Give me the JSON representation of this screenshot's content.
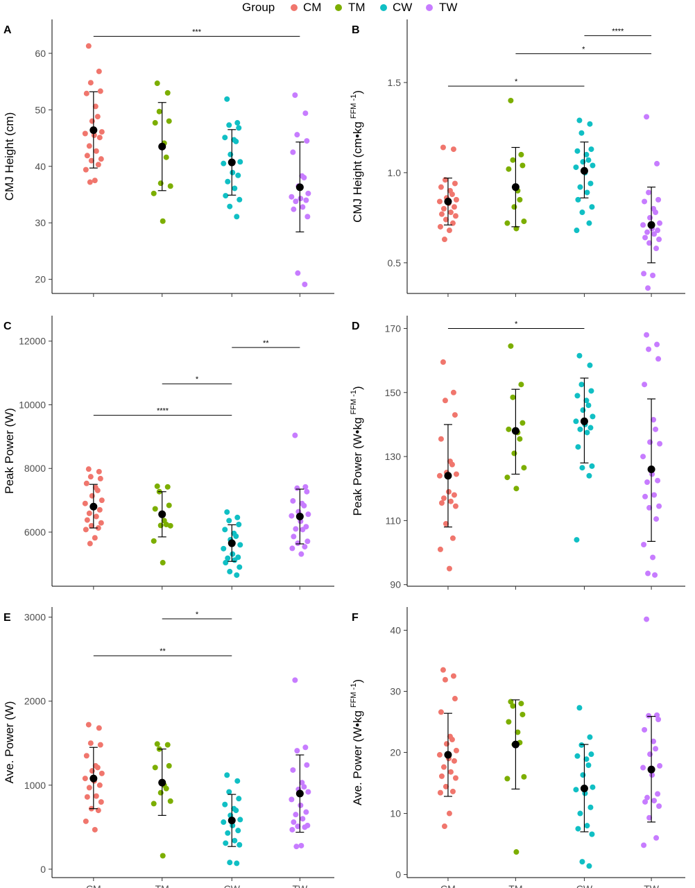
{
  "legend": {
    "title": "Group",
    "items": [
      {
        "label": "CM",
        "color": "#f0766d"
      },
      {
        "label": "TM",
        "color": "#7cae00"
      },
      {
        "label": "CW",
        "color": "#10bfc4"
      },
      {
        "label": "TW",
        "color": "#c77cff"
      }
    ]
  },
  "chart_data": [
    {
      "panel": "A",
      "type": "scatter",
      "ylabel": "CMJ Height (cm)",
      "categories": [
        "CM",
        "TM",
        "CW",
        "TW"
      ],
      "yticks": [
        20,
        30,
        40,
        50,
        60
      ],
      "ylim": [
        17.5,
        66
      ],
      "summary": [
        {
          "group": "CM",
          "mean": 46.4,
          "lower": 39.7,
          "upper": 53.2
        },
        {
          "group": "TM",
          "mean": 43.5,
          "lower": 35.7,
          "upper": 51.3
        },
        {
          "group": "CW",
          "mean": 40.7,
          "lower": 34.9,
          "upper": 46.5
        },
        {
          "group": "TW",
          "mean": 36.3,
          "lower": 28.4,
          "upper": 44.3
        }
      ],
      "points": [
        {
          "group": "CM",
          "values": [
            61.3,
            56.8,
            54.8,
            53.3,
            52.9,
            50.6,
            48.8,
            48.0,
            46.1,
            45.8,
            45.5,
            45.1,
            43.6,
            42.7,
            41.9,
            41.3,
            41.0,
            40.3,
            39.4,
            37.5,
            37.2
          ]
        },
        {
          "group": "TM",
          "values": [
            54.7,
            53.0,
            49.7,
            48.0,
            47.7,
            44.1,
            41.6,
            37.0,
            36.5,
            35.2,
            30.3
          ]
        },
        {
          "group": "CW",
          "values": [
            51.9,
            47.7,
            47.3,
            46.8,
            45.1,
            44.7,
            44.4,
            42.1,
            40.8,
            40.5,
            38.9,
            38.4,
            37.3,
            36.1,
            34.8,
            34.1,
            32.9,
            31.1
          ]
        },
        {
          "group": "TW",
          "values": [
            52.6,
            49.4,
            45.6,
            44.5,
            42.5,
            38.3,
            38.0,
            36.5,
            35.2,
            34.6,
            34.3,
            34.0,
            33.8,
            32.8,
            32.4,
            31.1,
            21.1,
            19.1
          ]
        }
      ],
      "significance": [
        {
          "from": "CM",
          "to": "TW",
          "y": 63.0,
          "label": "***"
        }
      ]
    },
    {
      "panel": "B",
      "type": "scatter",
      "ylabel": "CMJ Height (cm•kg",
      "ylabel_superscript": "FFM",
      "ylabel_exponent": "-1",
      "ylabel_close": ")",
      "categories": [
        "CM",
        "TM",
        "CW",
        "TW"
      ],
      "yticks": [
        0.5,
        1.0,
        1.5
      ],
      "ylim": [
        0.33,
        1.85
      ],
      "yticklabels": [
        "0.5",
        "1.0",
        "1.5"
      ],
      "summary": [
        {
          "group": "CM",
          "mean": 0.84,
          "lower": 0.71,
          "upper": 0.97
        },
        {
          "group": "TM",
          "mean": 0.92,
          "lower": 0.7,
          "upper": 1.14
        },
        {
          "group": "CW",
          "mean": 1.01,
          "lower": 0.86,
          "upper": 1.17
        },
        {
          "group": "TW",
          "mean": 0.71,
          "lower": 0.5,
          "upper": 0.92
        }
      ],
      "points": [
        {
          "group": "CM",
          "values": [
            1.14,
            1.13,
            0.96,
            0.94,
            0.92,
            0.9,
            0.88,
            0.86,
            0.85,
            0.84,
            0.83,
            0.81,
            0.8,
            0.78,
            0.77,
            0.76,
            0.74,
            0.72,
            0.7,
            0.68,
            0.63
          ]
        },
        {
          "group": "TM",
          "values": [
            1.4,
            1.1,
            1.07,
            1.04,
            1.02,
            0.9,
            0.85,
            0.81,
            0.73,
            0.72,
            0.69
          ]
        },
        {
          "group": "CW",
          "values": [
            1.29,
            1.27,
            1.22,
            1.13,
            1.12,
            1.1,
            1.07,
            1.06,
            1.04,
            1.03,
            1.0,
            0.94,
            0.92,
            0.89,
            0.85,
            0.81,
            0.78,
            0.72,
            0.68
          ]
        },
        {
          "group": "TW",
          "values": [
            1.31,
            1.05,
            0.89,
            0.85,
            0.84,
            0.8,
            0.78,
            0.75,
            0.72,
            0.71,
            0.69,
            0.68,
            0.67,
            0.66,
            0.64,
            0.63,
            0.61,
            0.58,
            0.44,
            0.43,
            0.36
          ]
        }
      ],
      "significance": [
        {
          "from": "CW",
          "to": "TW",
          "y": 1.76,
          "label": "****"
        },
        {
          "from": "TM",
          "to": "TW",
          "y": 1.66,
          "label": "*"
        },
        {
          "from": "CM",
          "to": "CW",
          "y": 1.48,
          "label": "*"
        }
      ]
    },
    {
      "panel": "C",
      "type": "scatter",
      "ylabel": "Peak Power (W)",
      "categories": [
        "CM",
        "TM",
        "CW",
        "TW"
      ],
      "yticks": [
        6000,
        8000,
        10000,
        12000
      ],
      "ylim": [
        4300,
        12800
      ],
      "summary": [
        {
          "group": "CM",
          "mean": 6800,
          "lower": 6130,
          "upper": 7500
        },
        {
          "group": "TM",
          "mean": 6560,
          "lower": 5850,
          "upper": 7270
        },
        {
          "group": "CW",
          "mean": 5650,
          "lower": 5080,
          "upper": 6230
        },
        {
          "group": "TW",
          "mean": 6490,
          "lower": 5630,
          "upper": 7350
        }
      ],
      "points": [
        {
          "group": "CM",
          "values": [
            7980,
            7900,
            7740,
            7680,
            7530,
            7400,
            7310,
            7140,
            7000,
            6900,
            6810,
            6700,
            6590,
            6490,
            6380,
            6290,
            6200,
            6130,
            6080,
            5820,
            5640
          ]
        },
        {
          "group": "TM",
          "values": [
            7440,
            7420,
            7270,
            6840,
            6730,
            6360,
            6240,
            6210,
            6200,
            5720,
            5040
          ]
        },
        {
          "group": "CW",
          "values": [
            6630,
            6460,
            6360,
            6240,
            6080,
            5960,
            5870,
            5760,
            5600,
            5480,
            5310,
            5210,
            5180,
            5120,
            5040,
            4900,
            4760,
            4650
          ]
        },
        {
          "group": "TW",
          "values": [
            9040,
            7420,
            7380,
            7270,
            6980,
            6900,
            6830,
            6640,
            6560,
            6510,
            6340,
            6170,
            6100,
            6080,
            5860,
            5710,
            5650,
            5540,
            5490,
            5310
          ]
        }
      ],
      "significance": [
        {
          "from": "CW",
          "to": "TW",
          "y": 11800,
          "label": "**"
        },
        {
          "from": "TM",
          "to": "CW",
          "y": 10660,
          "label": "*"
        },
        {
          "from": "CM",
          "to": "CW",
          "y": 9670,
          "label": "****"
        }
      ]
    },
    {
      "panel": "D",
      "type": "scatter",
      "ylabel": "Peak Power (W•kg",
      "ylabel_superscript": "FFM",
      "ylabel_exponent": "-1",
      "ylabel_close": ")",
      "categories": [
        "CM",
        "TM",
        "CW",
        "TW"
      ],
      "yticks": [
        90,
        110,
        130,
        150,
        170
      ],
      "ylim": [
        89.5,
        174
      ],
      "summary": [
        {
          "group": "CM",
          "mean": 124,
          "lower": 108,
          "upper": 140
        },
        {
          "group": "TM",
          "mean": 138,
          "lower": 124.5,
          "upper": 151
        },
        {
          "group": "CW",
          "mean": 141,
          "lower": 128,
          "upper": 154.5
        },
        {
          "group": "TW",
          "mean": 126,
          "lower": 103.5,
          "upper": 148
        }
      ],
      "points": [
        {
          "group": "CM",
          "values": [
            159.5,
            150,
            147.5,
            143,
            135.5,
            128.5,
            127.5,
            125,
            124.5,
            124,
            119,
            118,
            117,
            116,
            115.5,
            114.5,
            109,
            104.5,
            101,
            95
          ]
        },
        {
          "group": "TM",
          "values": [
            164.5,
            152.5,
            148.5,
            140.5,
            138.5,
            137.5,
            135.5,
            131,
            126.5,
            123.5,
            120
          ]
        },
        {
          "group": "CW",
          "values": [
            161.5,
            158.5,
            152.5,
            150.5,
            149,
            147.5,
            146,
            144.5,
            142.5,
            141,
            140,
            139,
            138.5,
            137.5,
            133,
            127,
            126.5,
            124,
            104
          ]
        },
        {
          "group": "TW",
          "values": [
            168,
            165,
            163.5,
            160.5,
            152.5,
            141.5,
            138.5,
            134.5,
            134,
            130,
            124.5,
            122.5,
            122,
            118,
            117.5,
            114.5,
            114,
            110.5,
            102.5,
            98.5,
            93.5,
            93
          ]
        }
      ],
      "significance": [
        {
          "from": "CM",
          "to": "CW",
          "y": 170,
          "label": "*"
        }
      ]
    },
    {
      "panel": "E",
      "type": "scatter",
      "ylabel": "Ave. Power (W)",
      "categories": [
        "CM",
        "TM",
        "CW",
        "TW"
      ],
      "yticks": [
        0,
        1000,
        2000,
        3000
      ],
      "ylim": [
        -100,
        3120
      ],
      "summary": [
        {
          "group": "CM",
          "mean": 1080,
          "lower": 720,
          "upper": 1450
        },
        {
          "group": "TM",
          "mean": 1030,
          "lower": 640,
          "upper": 1430
        },
        {
          "group": "CW",
          "mean": 580,
          "lower": 270,
          "upper": 890
        },
        {
          "group": "TW",
          "mean": 900,
          "lower": 440,
          "upper": 1360
        }
      ],
      "points": [
        {
          "group": "CM",
          "values": [
            1720,
            1680,
            1500,
            1480,
            1350,
            1230,
            1210,
            1170,
            1140,
            1080,
            1050,
            1000,
            970,
            870,
            860,
            800,
            720,
            700,
            570,
            470
          ]
        },
        {
          "group": "TM",
          "values": [
            1490,
            1480,
            1430,
            1230,
            1210,
            1000,
            960,
            910,
            810,
            780,
            160
          ]
        },
        {
          "group": "CW",
          "values": [
            1120,
            1050,
            920,
            840,
            770,
            720,
            700,
            640,
            590,
            560,
            520,
            460,
            430,
            340,
            310,
            290,
            80,
            70
          ]
        },
        {
          "group": "TW",
          "values": [
            2250,
            1450,
            1410,
            1240,
            1180,
            1030,
            980,
            950,
            920,
            830,
            760,
            680,
            650,
            600,
            560,
            520,
            510,
            500,
            470,
            280,
            270
          ]
        }
      ],
      "significance": [
        {
          "from": "TM",
          "to": "CW",
          "y": 2980,
          "label": "*"
        },
        {
          "from": "CM",
          "to": "CW",
          "y": 2540,
          "label": "**"
        }
      ]
    },
    {
      "panel": "F",
      "type": "scatter",
      "ylabel": "Ave. Power (W•kg",
      "ylabel_superscript": "FFM",
      "ylabel_exponent": "-1",
      "ylabel_close": ")",
      "categories": [
        "CM",
        "TM",
        "CW",
        "TW"
      ],
      "yticks": [
        0,
        10,
        20,
        30,
        40
      ],
      "ylim": [
        -0.5,
        43.8
      ],
      "summary": [
        {
          "group": "CM",
          "mean": 19.6,
          "lower": 12.8,
          "upper": 26.4
        },
        {
          "group": "TM",
          "mean": 21.3,
          "lower": 14.0,
          "upper": 28.6
        },
        {
          "group": "CW",
          "mean": 14.1,
          "lower": 7.0,
          "upper": 21.3
        },
        {
          "group": "TW",
          "mean": 17.2,
          "lower": 8.6,
          "upper": 25.9
        }
      ],
      "points": [
        {
          "group": "CM",
          "values": [
            33.5,
            32.5,
            31.9,
            28.8,
            26.6,
            22.6,
            22.1,
            21.4,
            20.3,
            19.6,
            19.0,
            18.6,
            17.6,
            16.8,
            16.1,
            15.8,
            14.4,
            13.6,
            13.4,
            10.0,
            7.9
          ]
        },
        {
          "group": "TM",
          "values": [
            28.3,
            28.0,
            27.6,
            26.2,
            25.0,
            23.3,
            21.6,
            21.3,
            16.0,
            15.7,
            3.7
          ]
        },
        {
          "group": "CW",
          "values": [
            27.3,
            22.5,
            21.2,
            19.7,
            19.4,
            18.9,
            17.9,
            16.3,
            14.3,
            13.9,
            13.3,
            11.0,
            10.0,
            8.0,
            7.5,
            6.6,
            2.1,
            1.4
          ]
        },
        {
          "group": "TW",
          "values": [
            41.8,
            26.1,
            26.0,
            25.4,
            23.7,
            21.8,
            20.6,
            19.7,
            17.8,
            17.5,
            16.3,
            13.2,
            12.6,
            12.1,
            11.9,
            11.2,
            9.3,
            6.0,
            4.8
          ]
        }
      ],
      "significance": []
    }
  ]
}
